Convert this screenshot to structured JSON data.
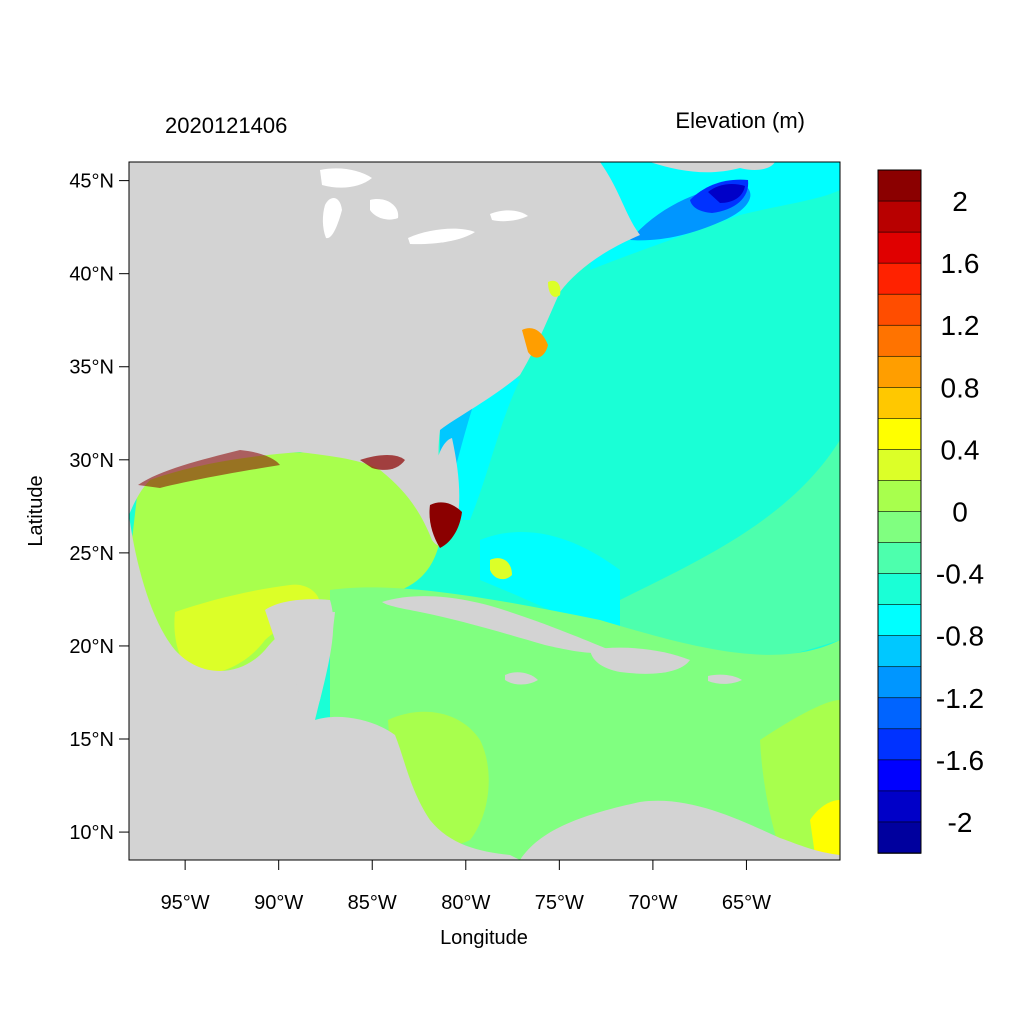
{
  "header": {
    "left_title": "2020121406",
    "right_title": "Elevation (m)"
  },
  "axes": {
    "xlabel": "Longitude",
    "ylabel": "Latitude",
    "xrange": [
      -98,
      -60
    ],
    "yrange": [
      8.5,
      46
    ],
    "x_ticks": [
      {
        "value": -95,
        "label": "95°W"
      },
      {
        "value": -90,
        "label": "90°W"
      },
      {
        "value": -85,
        "label": "85°W"
      },
      {
        "value": -80,
        "label": "80°W"
      },
      {
        "value": -75,
        "label": "75°W"
      },
      {
        "value": -70,
        "label": "70°W"
      },
      {
        "value": -65,
        "label": "65°W"
      }
    ],
    "y_ticks": [
      {
        "value": 45,
        "label": "45°N"
      },
      {
        "value": 40,
        "label": "40°N"
      },
      {
        "value": 35,
        "label": "35°N"
      },
      {
        "value": 30,
        "label": "30°N"
      },
      {
        "value": 25,
        "label": "25°N"
      },
      {
        "value": 20,
        "label": "20°N"
      },
      {
        "value": 15,
        "label": "15°N"
      },
      {
        "value": 10,
        "label": "10°N"
      }
    ]
  },
  "colorbar": {
    "colors": [
      "#8b0000",
      "#b80000",
      "#e00000",
      "#ff2200",
      "#ff4d00",
      "#ff7300",
      "#ff9e00",
      "#ffc800",
      "#ffff00",
      "#dcff28",
      "#a8ff4d",
      "#80ff80",
      "#4dffad",
      "#1affd6",
      "#00ffff",
      "#00c8ff",
      "#0096ff",
      "#0064ff",
      "#0032ff",
      "#0000ff",
      "#0000c8",
      "#00009e"
    ],
    "labels": [
      "2",
      "1.6",
      "1.2",
      "0.8",
      "0.4",
      "0",
      "-0.4",
      "-0.8",
      "-1.2",
      "-1.6",
      "-2"
    ]
  },
  "colors": {
    "land": "#d3d3d3",
    "ocean_main": "#1affd6",
    "gulf": "#a8ff4d",
    "caribbean": "#80ff80"
  }
}
